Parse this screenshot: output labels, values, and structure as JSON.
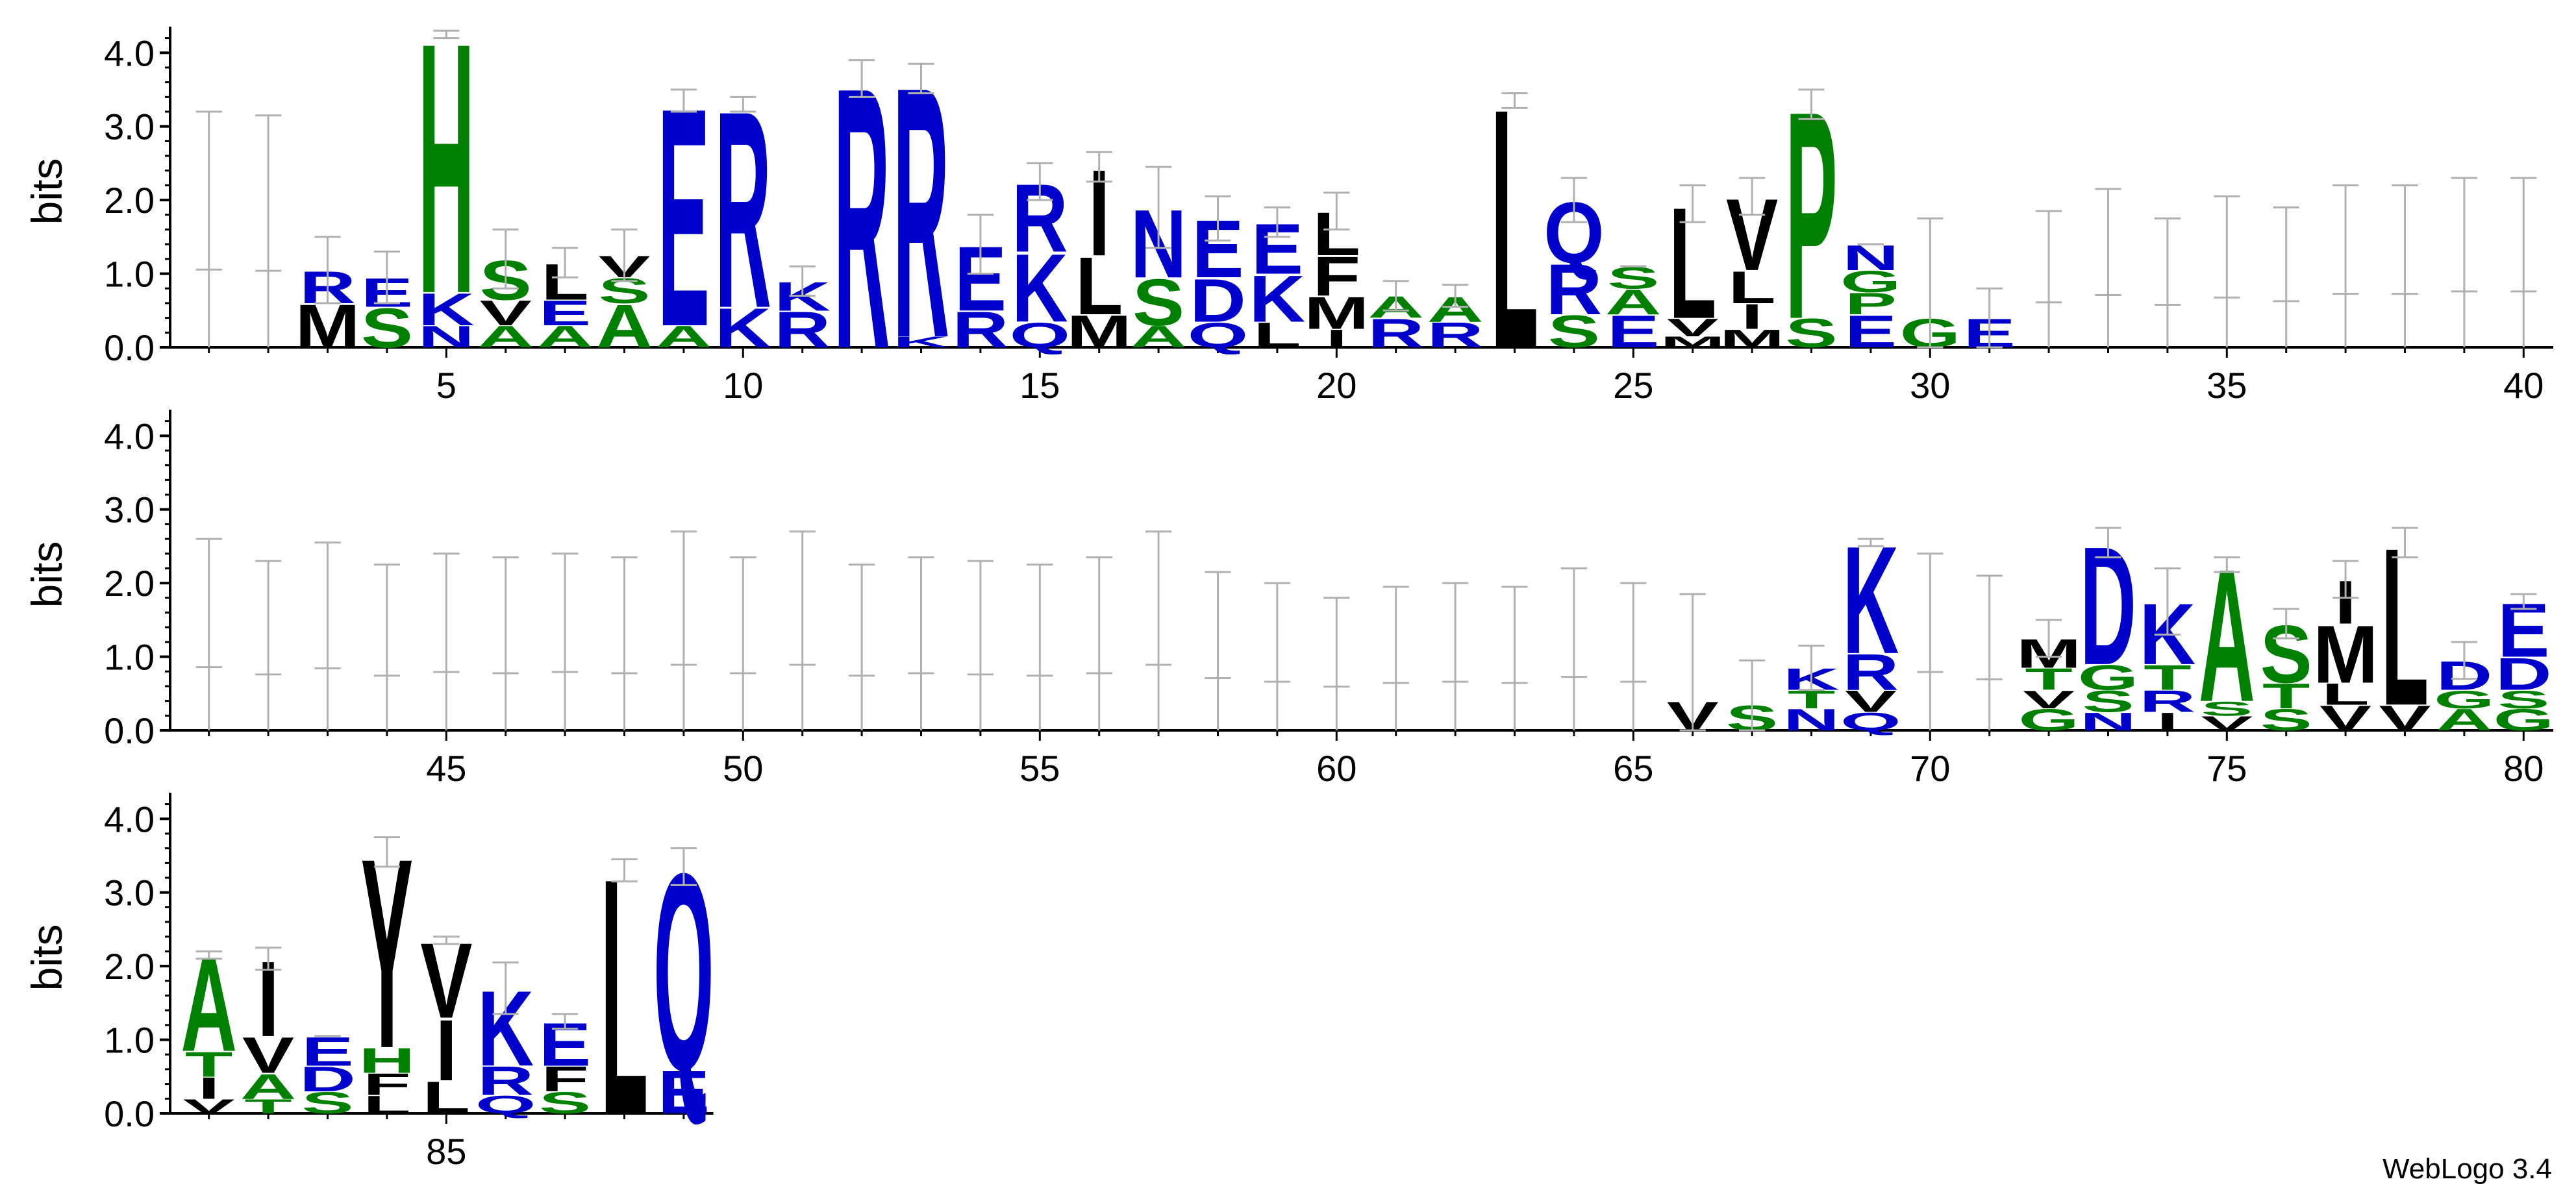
{
  "chart_data": {
    "type": "sequence-logo",
    "ylabel": "bits",
    "ylim": [
      0,
      4.32
    ],
    "yticks": [
      "0.0",
      "1.0",
      "2.0",
      "3.0",
      "4.0"
    ],
    "xtick_labels": [
      "5",
      "10",
      "15",
      "20",
      "25",
      "30",
      "35",
      "40",
      "45",
      "50",
      "55",
      "60",
      "65",
      "70",
      "75",
      "80",
      "85"
    ],
    "footer": "WebLogo 3.4",
    "colors": {
      "hydrophobic": "#000000",
      "polar": "#008000",
      "charged": "#0000cc",
      "error_bar": "#b0b0b0"
    },
    "positions": [
      {
        "pos": 1,
        "stack": [],
        "err": [
          0,
          3.2
        ]
      },
      {
        "pos": 2,
        "stack": [],
        "err": [
          0,
          3.15
        ]
      },
      {
        "pos": 3,
        "stack": [
          [
            "M",
            0.6
          ],
          [
            "R",
            0.45
          ]
        ],
        "err": [
          0,
          1.5
        ]
      },
      {
        "pos": 4,
        "stack": [
          [
            "S",
            0.55
          ],
          [
            "E",
            0.4
          ]
        ],
        "err": [
          0,
          1.3
        ]
      },
      {
        "pos": 5,
        "stack": [
          [
            "N",
            0.3
          ],
          [
            "K",
            0.45
          ],
          [
            "H",
            3.5
          ]
        ],
        "err": [
          0,
          4.3
        ]
      },
      {
        "pos": 6,
        "stack": [
          [
            "A",
            0.3
          ],
          [
            "V",
            0.35
          ],
          [
            "S",
            0.55
          ]
        ],
        "err": [
          0,
          1.6
        ]
      },
      {
        "pos": 7,
        "stack": [
          [
            "A",
            0.3
          ],
          [
            "E",
            0.35
          ],
          [
            "L",
            0.5
          ]
        ],
        "err": [
          0,
          1.35
        ]
      },
      {
        "pos": 8,
        "stack": [
          [
            "A",
            0.6
          ],
          [
            "S",
            0.35
          ],
          [
            "V",
            0.3
          ]
        ],
        "err": [
          0,
          1.6
        ]
      },
      {
        "pos": 9,
        "stack": [
          [
            "A",
            0.3
          ],
          [
            "E",
            3.05
          ]
        ],
        "err": [
          0,
          3.5
        ]
      },
      {
        "pos": 10,
        "stack": [
          [
            "K",
            0.55
          ],
          [
            "R",
            2.75
          ]
        ],
        "err": [
          0,
          3.4
        ]
      },
      {
        "pos": 11,
        "stack": [
          [
            "R",
            0.5
          ],
          [
            "K",
            0.4
          ]
        ],
        "err": [
          0,
          1.1
        ]
      },
      {
        "pos": 12,
        "stack": [
          [
            "R",
            3.65
          ]
        ],
        "err": [
          0,
          3.9
        ]
      },
      {
        "pos": 13,
        "stack": [
          [
            "K",
            0.15
          ],
          [
            "R",
            3.5
          ]
        ],
        "err": [
          0,
          3.85
        ]
      },
      {
        "pos": 14,
        "stack": [
          [
            "R",
            0.5
          ],
          [
            "E",
            0.9
          ]
        ],
        "err": [
          0,
          1.8
        ]
      },
      {
        "pos": 15,
        "stack": [
          [
            "Q",
            0.35
          ],
          [
            "K",
            0.95
          ],
          [
            "R",
            0.95
          ]
        ],
        "err": [
          0,
          2.5
        ]
      },
      {
        "pos": 16,
        "stack": [
          [
            "M",
            0.45
          ],
          [
            "L",
            0.8
          ],
          [
            "I",
            1.2
          ]
        ],
        "err": [
          0,
          2.65
        ]
      },
      {
        "pos": 17,
        "stack": [
          [
            "A",
            0.3
          ],
          [
            "S",
            0.65
          ],
          [
            "N",
            0.95
          ]
        ],
        "err": [
          0,
          2.45
        ]
      },
      {
        "pos": 18,
        "stack": [
          [
            "Q",
            0.35
          ],
          [
            "D",
            0.6
          ],
          [
            "E",
            0.8
          ]
        ],
        "err": [
          0,
          2.05
        ]
      },
      {
        "pos": 19,
        "stack": [
          [
            "L",
            0.35
          ],
          [
            "K",
            0.65
          ],
          [
            "E",
            0.7
          ]
        ],
        "err": [
          0,
          1.9
        ]
      },
      {
        "pos": 20,
        "stack": [
          [
            "I",
            0.25
          ],
          [
            "M",
            0.45
          ],
          [
            "F",
            0.55
          ],
          [
            "L",
            0.6
          ]
        ],
        "err": [
          0,
          2.1
        ]
      },
      {
        "pos": 21,
        "stack": [
          [
            "R",
            0.4
          ],
          [
            "A",
            0.3
          ]
        ],
        "err": [
          0,
          0.9
        ]
      },
      {
        "pos": 22,
        "stack": [
          [
            "R",
            0.35
          ],
          [
            "A",
            0.35
          ]
        ],
        "err": [
          0,
          0.85
        ]
      },
      {
        "pos": 23,
        "stack": [
          [
            "L",
            3.35
          ]
        ],
        "err": [
          0,
          3.45
        ]
      },
      {
        "pos": 24,
        "stack": [
          [
            "S",
            0.45
          ],
          [
            "R",
            0.7
          ],
          [
            "Q",
            0.85
          ]
        ],
        "err": [
          0,
          2.3
        ]
      },
      {
        "pos": 25,
        "stack": [
          [
            "E",
            0.45
          ],
          [
            "A",
            0.35
          ],
          [
            "S",
            0.3
          ]
        ],
        "err": [
          0,
          1.1
        ]
      },
      {
        "pos": 26,
        "stack": [
          [
            "M",
            0.15
          ],
          [
            "V",
            0.25
          ],
          [
            "L",
            1.55
          ]
        ],
        "err": [
          0,
          2.2
        ]
      },
      {
        "pos": 27,
        "stack": [
          [
            "M",
            0.25
          ],
          [
            "I",
            0.35
          ],
          [
            "L",
            0.45
          ],
          [
            "V",
            1.0
          ]
        ],
        "err": [
          0,
          2.3
        ]
      },
      {
        "pos": 28,
        "stack": [
          [
            "S",
            0.4
          ],
          [
            "P",
            2.9
          ]
        ],
        "err": [
          0,
          3.5
        ]
      },
      {
        "pos": 29,
        "stack": [
          [
            "E",
            0.45
          ],
          [
            "P",
            0.3
          ],
          [
            "G",
            0.3
          ],
          [
            "N",
            0.35
          ]
        ],
        "err": [
          0,
          1.4
        ]
      },
      {
        "pos": 30,
        "stack": [
          [
            "G",
            0.4
          ]
        ],
        "err": [
          0,
          1.75
        ]
      },
      {
        "pos": 31,
        "stack": [
          [
            "E",
            0.4
          ]
        ],
        "err": [
          0,
          0.8
        ]
      },
      {
        "pos": 32,
        "stack": [],
        "err": [
          0,
          1.85
        ]
      },
      {
        "pos": 33,
        "stack": [],
        "err": [
          0,
          2.15
        ]
      },
      {
        "pos": 34,
        "stack": [],
        "err": [
          0,
          1.75
        ]
      },
      {
        "pos": 35,
        "stack": [],
        "err": [
          0,
          2.05
        ]
      },
      {
        "pos": 36,
        "stack": [],
        "err": [
          0,
          1.9
        ]
      },
      {
        "pos": 37,
        "stack": [],
        "err": [
          0,
          2.2
        ]
      },
      {
        "pos": 38,
        "stack": [],
        "err": [
          0,
          2.2
        ]
      },
      {
        "pos": 39,
        "stack": [],
        "err": [
          0,
          2.3
        ]
      },
      {
        "pos": 40,
        "stack": [],
        "err": [
          0,
          2.3
        ]
      },
      {
        "pos": 41,
        "stack": [],
        "err": [
          0,
          2.6
        ]
      },
      {
        "pos": 42,
        "stack": [],
        "err": [
          0,
          2.3
        ]
      },
      {
        "pos": 43,
        "stack": [],
        "err": [
          0,
          2.55
        ]
      },
      {
        "pos": 44,
        "stack": [],
        "err": [
          0,
          2.25
        ]
      },
      {
        "pos": 45,
        "stack": [],
        "err": [
          0,
          2.4
        ]
      },
      {
        "pos": 46,
        "stack": [],
        "err": [
          0,
          2.35
        ]
      },
      {
        "pos": 47,
        "stack": [],
        "err": [
          0,
          2.4
        ]
      },
      {
        "pos": 48,
        "stack": [],
        "err": [
          0,
          2.35
        ]
      },
      {
        "pos": 49,
        "stack": [],
        "err": [
          0,
          2.7
        ]
      },
      {
        "pos": 50,
        "stack": [],
        "err": [
          0,
          2.35
        ]
      },
      {
        "pos": 51,
        "stack": [],
        "err": [
          0,
          2.7
        ]
      },
      {
        "pos": 52,
        "stack": [],
        "err": [
          0,
          2.25
        ]
      },
      {
        "pos": 53,
        "stack": [],
        "err": [
          0,
          2.35
        ]
      },
      {
        "pos": 54,
        "stack": [],
        "err": [
          0,
          2.3
        ]
      },
      {
        "pos": 55,
        "stack": [],
        "err": [
          0,
          2.25
        ]
      },
      {
        "pos": 56,
        "stack": [],
        "err": [
          0,
          2.35
        ]
      },
      {
        "pos": 57,
        "stack": [],
        "err": [
          0,
          2.7
        ]
      },
      {
        "pos": 58,
        "stack": [],
        "err": [
          0,
          2.15
        ]
      },
      {
        "pos": 59,
        "stack": [],
        "err": [
          0,
          2.0
        ]
      },
      {
        "pos": 60,
        "stack": [],
        "err": [
          0,
          1.8
        ]
      },
      {
        "pos": 61,
        "stack": [],
        "err": [
          0,
          1.95
        ]
      },
      {
        "pos": 62,
        "stack": [],
        "err": [
          0,
          2.0
        ]
      },
      {
        "pos": 63,
        "stack": [],
        "err": [
          0,
          1.95
        ]
      },
      {
        "pos": 64,
        "stack": [],
        "err": [
          0,
          2.2
        ]
      },
      {
        "pos": 65,
        "stack": [],
        "err": [
          0,
          2.0
        ]
      },
      {
        "pos": 66,
        "stack": [
          [
            "V",
            0.4
          ]
        ],
        "err": [
          0,
          1.85
        ]
      },
      {
        "pos": 67,
        "stack": [
          [
            "S",
            0.35
          ]
        ],
        "err": [
          0,
          0.95
        ]
      },
      {
        "pos": 68,
        "stack": [
          [
            "N",
            0.3
          ],
          [
            "T",
            0.25
          ],
          [
            "K",
            0.3
          ]
        ],
        "err": [
          0,
          1.15
        ]
      },
      {
        "pos": 69,
        "stack": [
          [
            "Q",
            0.25
          ],
          [
            "V",
            0.3
          ],
          [
            "R",
            0.5
          ],
          [
            "K",
            1.5
          ]
        ],
        "err": [
          0,
          2.5
        ]
      },
      {
        "pos": 70,
        "stack": [],
        "err": [
          0,
          2.4
        ]
      },
      {
        "pos": 71,
        "stack": [],
        "err": [
          0,
          2.1
        ]
      },
      {
        "pos": 72,
        "stack": [
          [
            "G",
            0.3
          ],
          [
            "V",
            0.25
          ],
          [
            "T",
            0.3
          ],
          [
            "M",
            0.4
          ]
        ],
        "err": [
          0,
          1.5
        ]
      },
      {
        "pos": 73,
        "stack": [
          [
            "N",
            0.25
          ],
          [
            "S",
            0.3
          ],
          [
            "G",
            0.35
          ],
          [
            "D",
            1.65
          ]
        ],
        "err": [
          0,
          2.75
        ]
      },
      {
        "pos": 74,
        "stack": [
          [
            "I",
            0.25
          ],
          [
            "R",
            0.3
          ],
          [
            "T",
            0.35
          ],
          [
            "K",
            0.85
          ]
        ],
        "err": [
          0,
          2.2
        ]
      },
      {
        "pos": 75,
        "stack": [
          [
            "V",
            0.2
          ],
          [
            "S",
            0.2
          ],
          [
            "A",
            1.85
          ]
        ],
        "err": [
          0,
          2.35
        ]
      },
      {
        "pos": 76,
        "stack": [
          [
            "S",
            0.3
          ],
          [
            "T",
            0.35
          ],
          [
            "S",
            0.8
          ]
        ],
        "err": [
          0,
          1.65
        ]
      },
      {
        "pos": 77,
        "stack": [
          [
            "V",
            0.35
          ],
          [
            "L",
            0.3
          ],
          [
            "M",
            0.8
          ],
          [
            "I",
            0.6
          ]
        ],
        "err": [
          0,
          2.3
        ]
      },
      {
        "pos": 78,
        "stack": [
          [
            "V",
            0.35
          ],
          [
            "L",
            2.2
          ]
        ],
        "err": [
          0,
          2.75
        ]
      },
      {
        "pos": 79,
        "stack": [
          [
            "A",
            0.3
          ],
          [
            "G",
            0.25
          ],
          [
            "D",
            0.4
          ]
        ],
        "err": [
          0,
          1.2
        ]
      },
      {
        "pos": 80,
        "stack": [
          [
            "G",
            0.3
          ],
          [
            "S",
            0.25
          ],
          [
            "D",
            0.45
          ],
          [
            "E",
            0.75
          ]
        ],
        "err": [
          0,
          1.85
        ]
      },
      {
        "pos": 81,
        "stack": [
          [
            "V",
            0.2
          ],
          [
            "I",
            0.3
          ],
          [
            "T",
            0.35
          ],
          [
            "A",
            1.3
          ]
        ],
        "err": [
          0,
          2.2
        ]
      },
      {
        "pos": 82,
        "stack": [
          [
            "T",
            0.2
          ],
          [
            "A",
            0.35
          ],
          [
            "V",
            0.5
          ],
          [
            "I",
            1.05
          ]
        ],
        "err": [
          0,
          2.25
        ]
      },
      {
        "pos": 83,
        "stack": [
          [
            "S",
            0.3
          ],
          [
            "D",
            0.35
          ],
          [
            "E",
            0.4
          ]
        ],
        "err": [
          0,
          1.05
        ]
      },
      {
        "pos": 84,
        "stack": [
          [
            "L",
            0.25
          ],
          [
            "F",
            0.3
          ],
          [
            "H",
            0.35
          ],
          [
            "Y",
            2.65
          ]
        ],
        "err": [
          0,
          3.75
        ]
      },
      {
        "pos": 85,
        "stack": [
          [
            "L",
            0.45
          ],
          [
            "I",
            0.85
          ],
          [
            "V",
            1.05
          ]
        ],
        "err": [
          0,
          2.4
        ]
      },
      {
        "pos": 86,
        "stack": [
          [
            "Q",
            0.25
          ],
          [
            "R",
            0.4
          ],
          [
            "K",
            1.05
          ]
        ],
        "err": [
          0,
          2.05
        ]
      },
      {
        "pos": 87,
        "stack": [
          [
            "S",
            0.3
          ],
          [
            "F",
            0.35
          ],
          [
            "E",
            0.6
          ]
        ],
        "err": [
          0,
          1.35
        ]
      },
      {
        "pos": 88,
        "stack": [
          [
            "L",
            3.3
          ]
        ],
        "err": [
          0,
          3.45
        ]
      },
      {
        "pos": 89,
        "stack": [
          [
            "E",
            0.6
          ],
          [
            "Q",
            2.75
          ]
        ],
        "err": [
          0,
          3.6
        ]
      }
    ]
  }
}
